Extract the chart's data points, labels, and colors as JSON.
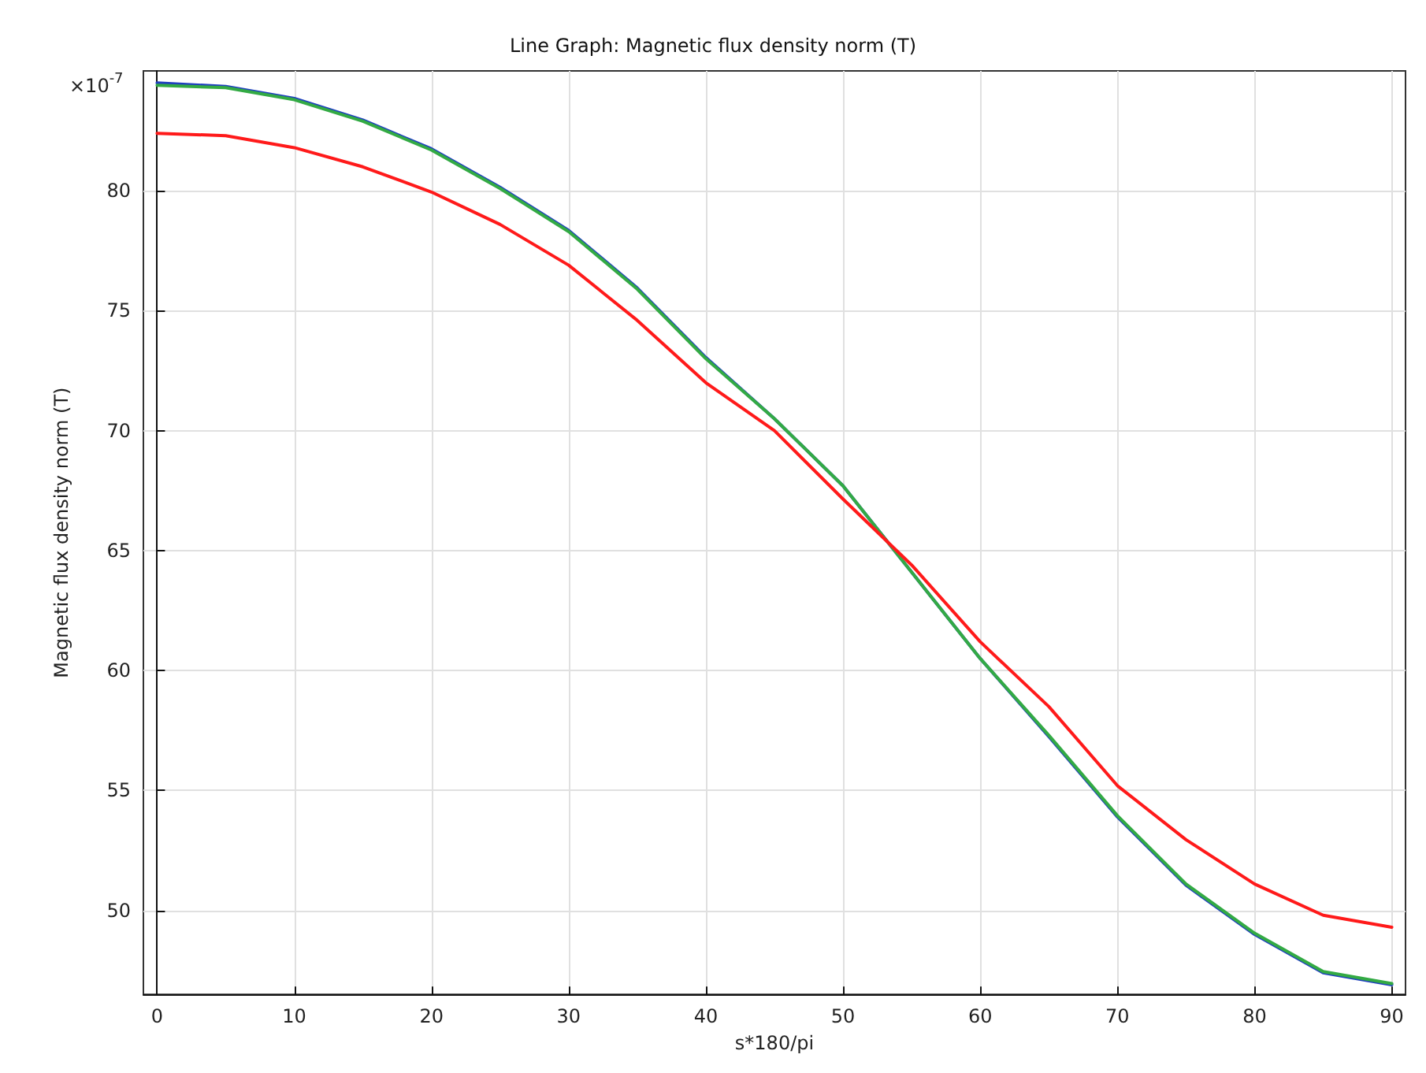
{
  "chart_data": {
    "type": "line",
    "title": "Line Graph: Magnetic flux density norm (T)",
    "xlabel": "s*180/pi",
    "ylabel": "Magnetic flux density norm (T)",
    "annotations": [
      "×10$^{-7}$"
    ],
    "x": [
      0,
      5,
      10,
      15,
      20,
      25,
      30,
      35,
      40,
      45,
      50,
      55,
      60,
      65,
      70,
      75,
      80,
      85,
      90
    ],
    "series": [
      {
        "color": "#1f3fbf",
        "values": [
          84.5,
          84.35,
          83.85,
          82.95,
          81.75,
          80.15,
          78.35,
          75.95,
          73.05,
          70.5,
          67.7,
          64.1,
          60.5,
          57.25,
          53.9,
          51.05,
          49.0,
          47.4,
          46.9
        ]
      },
      {
        "color": "#33aa44",
        "values": [
          84.4,
          84.3,
          83.8,
          82.9,
          81.7,
          80.1,
          78.3,
          75.9,
          73.0,
          70.5,
          67.7,
          64.1,
          60.5,
          57.3,
          53.95,
          51.1,
          49.05,
          47.45,
          46.95
        ]
      },
      {
        "color": "#ff1a1a",
        "values": [
          82.4,
          82.3,
          81.8,
          81.0,
          79.95,
          78.6,
          76.9,
          74.6,
          72.0,
          70.0,
          67.15,
          64.4,
          61.2,
          58.5,
          55.2,
          52.95,
          51.1,
          49.8,
          49.3
        ]
      }
    ],
    "xlim": [
      -1,
      91
    ],
    "xticks": [
      0,
      10,
      20,
      30,
      40,
      50,
      60,
      70,
      80,
      90
    ],
    "ylim": [
      46.5,
      85
    ],
    "yticks": [
      50,
      55,
      60,
      65,
      70,
      75,
      80
    ],
    "grid": true,
    "marker": "none",
    "line_style": "solid"
  }
}
